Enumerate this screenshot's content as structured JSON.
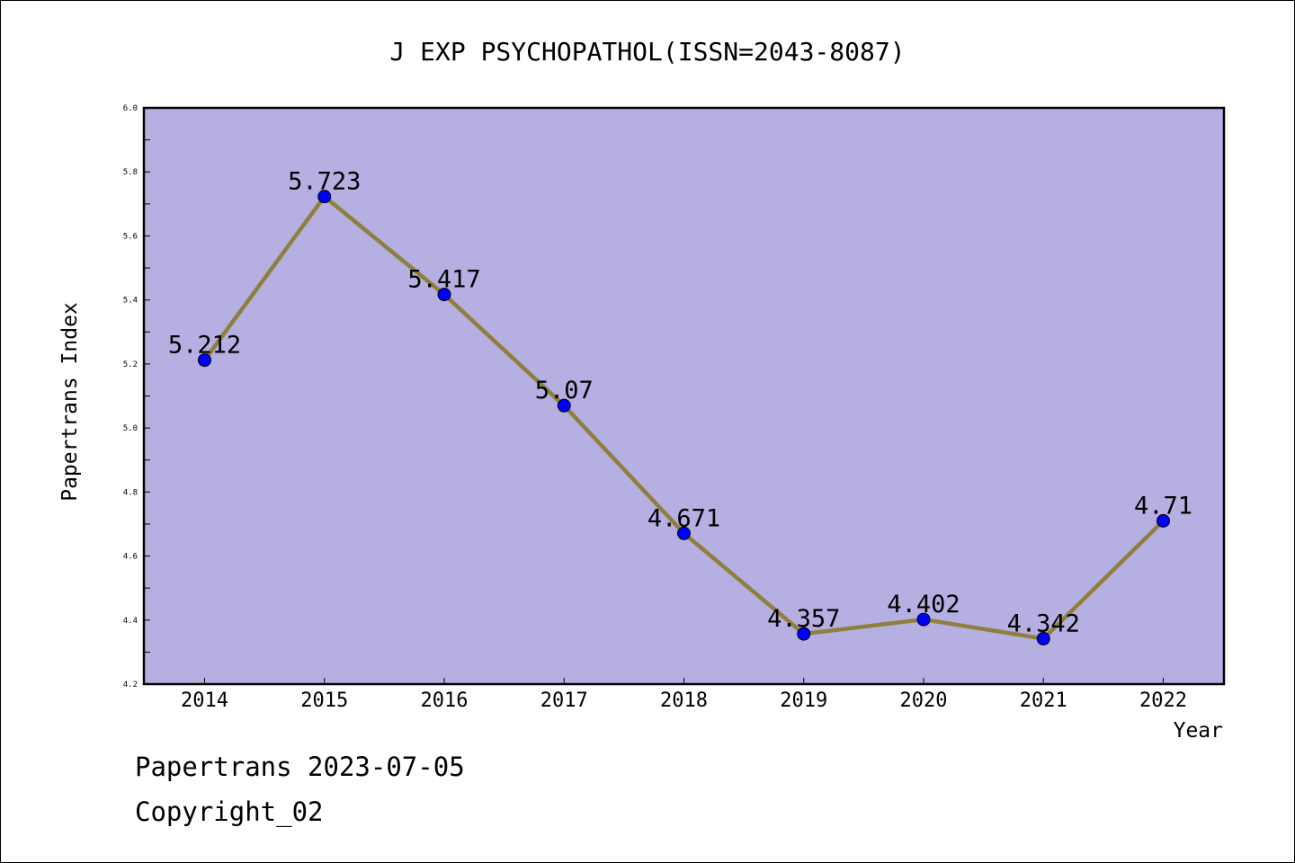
{
  "chart_data": {
    "type": "line",
    "title": "J EXP PSYCHOPATHOL(ISSN=2043-8087)",
    "xlabel": "Year",
    "ylabel": "Papertrans Index",
    "categories": [
      "2014",
      "2015",
      "2016",
      "2017",
      "2018",
      "2019",
      "2020",
      "2021",
      "2022"
    ],
    "values": [
      5.212,
      5.723,
      5.417,
      5.07,
      4.671,
      4.357,
      4.402,
      4.342,
      4.71
    ],
    "data_labels": [
      "5.212",
      "5.723",
      "5.417",
      "5.07",
      "4.671",
      "4.357",
      "4.402",
      "4.342",
      "4.71"
    ],
    "ylim": [
      4.2,
      6.0
    ],
    "yticks": [
      "4.2",
      "4.4",
      "4.6",
      "4.8",
      "5.0",
      "5.2",
      "5.4",
      "5.6",
      "5.8",
      "6.0"
    ],
    "grid": false,
    "colors": {
      "plot_background": "#b5afe2",
      "line": "#8f7f3d",
      "marker": "#0000ff"
    }
  },
  "footer": {
    "line1": "Papertrans 2023-07-05",
    "line2": "Copyright_02"
  }
}
